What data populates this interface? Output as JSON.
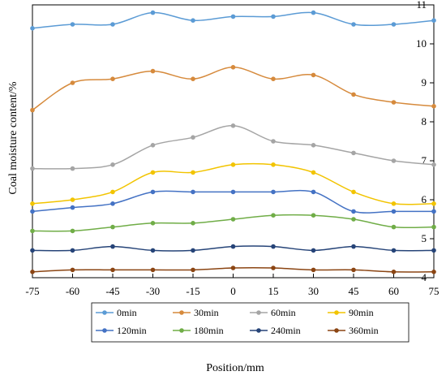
{
  "chart_data": {
    "type": "line",
    "title": "",
    "xlabel": "Position/mm",
    "ylabel": "Coal moisture content/%",
    "x": [
      -75,
      -60,
      -45,
      -30,
      -15,
      0,
      15,
      30,
      45,
      60,
      75
    ],
    "xlim": [
      -75,
      75
    ],
    "ylim": [
      4,
      11
    ],
    "x_ticks": [
      "-75",
      "-60",
      "-45",
      "-30",
      "-15",
      "0",
      "15",
      "30",
      "45",
      "60",
      "75"
    ],
    "y_ticks": [
      "4",
      "5",
      "6",
      "7",
      "8",
      "9",
      "10",
      "11"
    ],
    "grid": false,
    "smooth": true,
    "legend_position": "bottom",
    "series": [
      {
        "name": "0min",
        "color": "#5b9bd5",
        "values": [
          10.4,
          10.5,
          10.5,
          10.8,
          10.6,
          10.7,
          10.7,
          10.8,
          10.5,
          10.5,
          10.6
        ]
      },
      {
        "name": "30min",
        "color": "#d68a3c",
        "values": [
          8.3,
          9.0,
          9.1,
          9.3,
          9.1,
          9.4,
          9.1,
          9.2,
          8.7,
          8.5,
          8.4
        ]
      },
      {
        "name": "60min",
        "color": "#a5a5a5",
        "values": [
          6.8,
          6.8,
          6.9,
          7.4,
          7.6,
          7.9,
          7.5,
          7.4,
          7.2,
          7.0,
          6.9
        ]
      },
      {
        "name": "90min",
        "color": "#f2c400",
        "values": [
          5.9,
          6.0,
          6.2,
          6.7,
          6.7,
          6.9,
          6.9,
          6.7,
          6.2,
          5.9,
          5.9
        ]
      },
      {
        "name": "120min",
        "color": "#4472c4",
        "values": [
          5.7,
          5.8,
          5.9,
          6.2,
          6.2,
          6.2,
          6.2,
          6.2,
          5.7,
          5.7,
          5.7
        ]
      },
      {
        "name": "180min",
        "color": "#70ad47",
        "values": [
          5.2,
          5.2,
          5.3,
          5.4,
          5.4,
          5.5,
          5.6,
          5.6,
          5.5,
          5.3,
          5.3
        ]
      },
      {
        "name": "240min",
        "color": "#264478",
        "values": [
          4.7,
          4.7,
          4.8,
          4.7,
          4.7,
          4.8,
          4.8,
          4.7,
          4.8,
          4.7,
          4.7
        ]
      },
      {
        "name": "360min",
        "color": "#8b4513",
        "values": [
          4.15,
          4.2,
          4.2,
          4.2,
          4.2,
          4.25,
          4.25,
          4.2,
          4.2,
          4.15,
          4.15
        ]
      }
    ]
  }
}
